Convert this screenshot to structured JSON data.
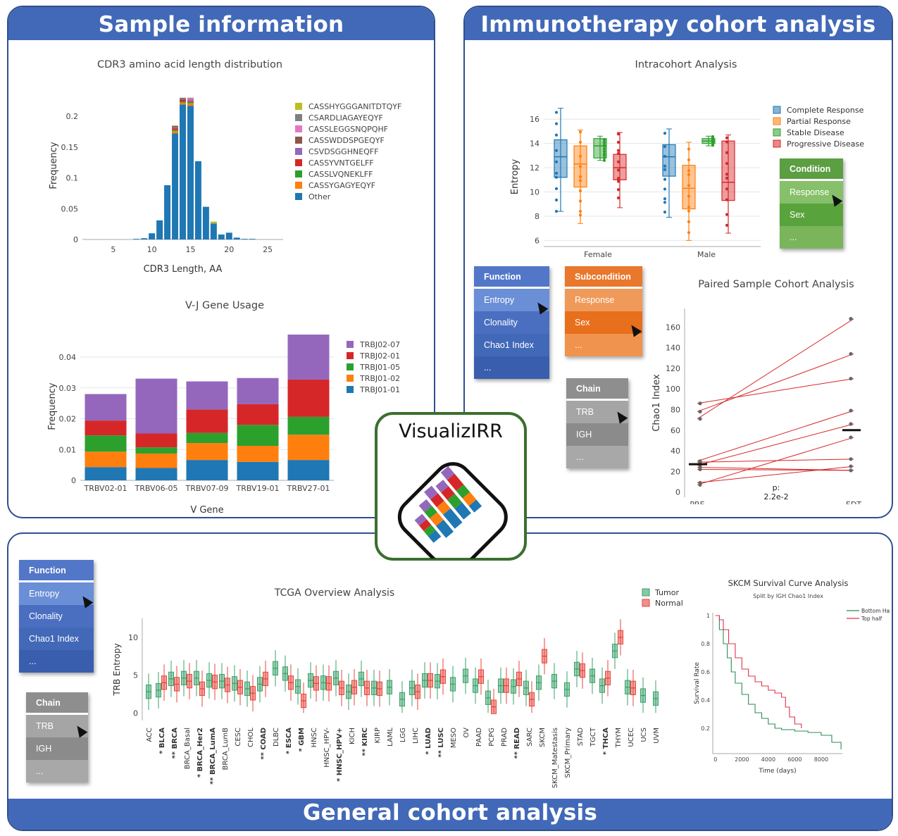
{
  "panels": {
    "sample": {
      "title": "Sample information"
    },
    "immuno": {
      "title": "Immunotherapy cohort analysis"
    },
    "general": {
      "title": "General cohort analysis"
    }
  },
  "logo": {
    "text": "VisualizIRR"
  },
  "colors": {
    "blue": "#1f77b4",
    "orange": "#ff7f0e",
    "green": "#2ca02c",
    "red": "#d62728",
    "purple": "#9467bd",
    "brown": "#8c564b",
    "pink": "#e377c2",
    "gray": "#7f7f7f",
    "olive": "#bcbd22"
  },
  "menus": {
    "function_top": {
      "header": "Function",
      "items": [
        "Entropy",
        "Clonality",
        "Chao1 Index",
        "..."
      ]
    },
    "subcondition": {
      "header": "Subcondition",
      "items": [
        "Response",
        "Sex",
        "..."
      ]
    },
    "chain_top": {
      "header": "Chain",
      "items": [
        "TRB",
        "IGH",
        "..."
      ]
    },
    "condition": {
      "header": "Condition",
      "items": [
        "Response",
        "Sex",
        "..."
      ]
    },
    "function_bottom": {
      "header": "Function",
      "items": [
        "Entropy",
        "Clonality",
        "Chao1 Index",
        "..."
      ]
    },
    "chain_bottom": {
      "header": "Chain",
      "items": [
        "TRB",
        "IGH",
        "..."
      ]
    }
  },
  "chart_data": [
    {
      "id": "cdr3",
      "type": "bar",
      "title": "CDR3 amino acid length distribution",
      "xlabel": "CDR3 Length, AA",
      "ylabel": "Frequency",
      "xlim": [
        1,
        27
      ],
      "ylim": [
        0,
        0.24
      ],
      "xticks": [
        5,
        10,
        15,
        20,
        25
      ],
      "yticks": [
        0,
        0.05,
        0.1,
        0.15,
        0.2
      ],
      "ytick_labels": [
        "0",
        "0.05",
        "0.1",
        "0.15",
        "0.2"
      ],
      "x": [
        8,
        9,
        10,
        11,
        12,
        13,
        14,
        15,
        16,
        17,
        18,
        19,
        20,
        21,
        22,
        23
      ],
      "series": [
        {
          "name": "Other",
          "color": "#1f77b4",
          "values": [
            0.001,
            0.002,
            0.01,
            0.031,
            0.088,
            0.172,
            0.219,
            0.217,
            0.127,
            0.053,
            0.026,
            0.008,
            0.011,
            0.003,
            0.001,
            0.001
          ]
        },
        {
          "name": "CASSYGAGYEQYF",
          "color": "#ff7f0e",
          "values": [
            0,
            0,
            0,
            0,
            0,
            0.004,
            0.003,
            0.004,
            0,
            0,
            0,
            0,
            0,
            0,
            0,
            0
          ]
        },
        {
          "name": "CASSLVQNEKLFF",
          "color": "#2ca02c",
          "values": [
            0,
            0,
            0,
            0,
            0,
            0.002,
            0.002,
            0.002,
            0,
            0,
            0,
            0,
            0,
            0,
            0,
            0
          ]
        },
        {
          "name": "CASSYVNTGELFF",
          "color": "#d62728",
          "values": [
            0,
            0,
            0,
            0,
            0,
            0.002,
            0.003,
            0.001,
            0,
            0,
            0,
            0,
            0,
            0,
            0,
            0
          ]
        },
        {
          "name": "CSVDSGGHNEQFF",
          "color": "#9467bd",
          "values": [
            0,
            0,
            0,
            0,
            0,
            0.002,
            0.001,
            0.002,
            0,
            0,
            0,
            0,
            0,
            0,
            0,
            0
          ]
        },
        {
          "name": "CASSWDDSPGEQYF",
          "color": "#8c564b",
          "values": [
            0,
            0,
            0,
            0,
            0,
            0.002,
            0.001,
            0.001,
            0,
            0,
            0,
            0,
            0,
            0,
            0,
            0
          ]
        },
        {
          "name": "CASSLEGGSNQPQHF",
          "color": "#e377c2",
          "values": [
            0,
            0,
            0,
            0,
            0,
            0,
            0,
            0.002,
            0,
            0,
            0,
            0,
            0,
            0,
            0,
            0
          ]
        },
        {
          "name": "CSARDLIAGAYEQYF",
          "color": "#7f7f7f",
          "values": [
            0,
            0,
            0,
            0,
            0,
            0,
            0.001,
            0.001,
            0,
            0,
            0,
            0,
            0,
            0,
            0,
            0
          ]
        },
        {
          "name": "CASSHYGGGANITDTQYF",
          "color": "#bcbd22",
          "values": [
            0,
            0,
            0,
            0,
            0,
            0.001,
            0,
            0,
            0,
            0,
            0.003,
            0,
            0,
            0,
            0,
            0
          ]
        }
      ]
    },
    {
      "id": "vj",
      "type": "bar",
      "title": "V-J Gene Usage",
      "xlabel": "V Gene",
      "ylabel": "Frequency",
      "ylim": [
        0,
        0.048
      ],
      "yticks": [
        0,
        0.01,
        0.02,
        0.03,
        0.04
      ],
      "ytick_labels": [
        "0",
        "0.01",
        "0.02",
        "0.03",
        "0.04"
      ],
      "categories": [
        "TRBV02-01",
        "TRBV06-05",
        "TRBV07-09",
        "TRBV19-01",
        "TRBV27-01"
      ],
      "series": [
        {
          "name": "TRBJ01-01",
          "color": "#1f77b4",
          "values": [
            0.0043,
            0.004,
            0.0066,
            0.006,
            0.0066
          ]
        },
        {
          "name": "TRBJ01-02",
          "color": "#ff7f0e",
          "values": [
            0.005,
            0.0047,
            0.0055,
            0.0052,
            0.0082
          ]
        },
        {
          "name": "TRBJ01-05",
          "color": "#2ca02c",
          "values": [
            0.0053,
            0.002,
            0.0033,
            0.0068,
            0.0058
          ]
        },
        {
          "name": "TRBJ02-01",
          "color": "#d62728",
          "values": [
            0.0048,
            0.0045,
            0.0076,
            0.0067,
            0.0121
          ]
        },
        {
          "name": "TRBJ02-07",
          "color": "#9467bd",
          "values": [
            0.0086,
            0.0178,
            0.0091,
            0.0085,
            0.0146
          ]
        }
      ]
    },
    {
      "id": "intracohort",
      "type": "box",
      "title": "Intracohort Analysis",
      "ylabel": "Entropy",
      "ylim": [
        5.5,
        17
      ],
      "yticks": [
        6,
        8,
        10,
        12,
        14,
        16
      ],
      "categories": [
        "Female",
        "Male"
      ],
      "series": [
        {
          "name": "Complete Response",
          "color": "#1f77b4",
          "boxes": [
            [
              8.4,
              11.2,
              12.9,
              14.3,
              16.9
            ],
            [
              7.9,
              11.3,
              12.9,
              13.9,
              15.2
            ]
          ]
        },
        {
          "name": "Partial Response",
          "color": "#ff7f0e",
          "boxes": [
            [
              7.4,
              10.4,
              12.3,
              13.8,
              15.1
            ],
            [
              6.0,
              8.6,
              10.3,
              12.2,
              14.1
            ]
          ]
        },
        {
          "name": "Stable Disease",
          "color": "#2ca02c",
          "boxes": [
            [
              12.6,
              12.8,
              13.8,
              14.4,
              14.6
            ],
            [
              13.8,
              14.0,
              14.2,
              14.4,
              14.6
            ]
          ]
        },
        {
          "name": "Progressive Disease",
          "color": "#d62728",
          "boxes": [
            [
              8.7,
              11.0,
              12.0,
              13.1,
              14.9
            ],
            [
              6.6,
              9.3,
              10.8,
              14.2,
              14.7
            ]
          ]
        }
      ]
    },
    {
      "id": "paired",
      "type": "line",
      "title": "Paired Sample Cohort Analysis",
      "ylabel": "Chao1 Index",
      "ylim": [
        -5,
        178
      ],
      "yticks": [
        0,
        20,
        40,
        60,
        80,
        100,
        120,
        140,
        160
      ],
      "categories": [
        "PRE",
        "EDT"
      ],
      "annotation": "p:\n2.2e-2",
      "median": [
        27,
        60
      ],
      "pairs": [
        [
          86,
          110
        ],
        [
          78,
          134
        ],
        [
          71,
          168
        ],
        [
          30,
          79
        ],
        [
          29,
          32
        ],
        [
          26,
          66
        ],
        [
          24,
          21
        ],
        [
          9,
          25
        ],
        [
          7,
          53
        ],
        [
          22,
          21
        ]
      ]
    },
    {
      "id": "tcga",
      "type": "box",
      "title": "TCGA Overview Analysis",
      "ylabel": "TRB Entropy",
      "ylim": [
        -1,
        12.5
      ],
      "yticks": [
        0,
        5,
        10
      ],
      "series_names": [
        "Tumor",
        "Normal"
      ],
      "categories": [
        {
          "label": "ACC",
          "sig": "",
          "t": 2.8
        },
        {
          "label": "BLCA",
          "sig": "*",
          "t": 3.0,
          "n": 4.0
        },
        {
          "label": "BRCA",
          "sig": "**",
          "t": 4.5,
          "n": 3.8
        },
        {
          "label": "BRCA_Basal",
          "sig": "",
          "t": 4.6,
          "n": 4.2
        },
        {
          "label": "BRCA_Her2",
          "sig": "*",
          "t": 4.6,
          "n": 3.2
        },
        {
          "label": "BRCA_LumA",
          "sig": "**",
          "t": 4.3,
          "n": 4.1
        },
        {
          "label": "BRCA_LumB",
          "sig": "",
          "t": 4.2,
          "n": 3.7
        },
        {
          "label": "CESC",
          "sig": "",
          "t": 3.9,
          "n": 3.4
        },
        {
          "label": "CHOL",
          "sig": "",
          "t": 3.2,
          "n": 2.6
        },
        {
          "label": "COAD",
          "sig": "**",
          "t": 3.8,
          "n": 4.5
        },
        {
          "label": "DLBC",
          "sig": "",
          "t": 5.9
        },
        {
          "label": "ESCA",
          "sig": "*",
          "t": 5.2,
          "n": 4.0
        },
        {
          "label": "GBM",
          "sig": "*",
          "t": 3.5,
          "n": 1.6
        },
        {
          "label": "HNSC",
          "sig": "",
          "t": 4.3,
          "n": 3.9
        },
        {
          "label": "HNSC_HPV-",
          "sig": "",
          "t": 4.0,
          "n": 3.9
        },
        {
          "label": "HNSC_HPV+",
          "sig": "*",
          "t": 4.6,
          "n": 3.3
        },
        {
          "label": "KICH",
          "sig": "",
          "t": 2.8,
          "n": 3.4
        },
        {
          "label": "KIRC",
          "sig": "**",
          "t": 4.5,
          "n": 3.3
        },
        {
          "label": "KIRP",
          "sig": "",
          "t": 3.3,
          "n": 3.2
        },
        {
          "label": "LAML",
          "sig": "",
          "t": 3.4
        },
        {
          "label": "LGG",
          "sig": "",
          "t": 1.8
        },
        {
          "label": "LIHC",
          "sig": "",
          "t": 3.3,
          "n": 2.8
        },
        {
          "label": "LUAD",
          "sig": "*",
          "t": 4.3,
          "n": 4.3
        },
        {
          "label": "LUSC",
          "sig": "**",
          "t": 4.2,
          "n": 4.8
        },
        {
          "label": "MESO",
          "sig": "",
          "t": 3.8
        },
        {
          "label": "OV",
          "sig": "",
          "t": 4.9
        },
        {
          "label": "PAAD",
          "sig": "",
          "t": 3.6,
          "n": 4.8
        },
        {
          "label": "PCPG",
          "sig": "",
          "t": 2.0,
          "n": 0.8
        },
        {
          "label": "PRAD",
          "sig": "",
          "t": 3.6,
          "n": 3.6
        },
        {
          "label": "READ",
          "sig": "**",
          "t": 3.5,
          "n": 4.5
        },
        {
          "label": "SARC",
          "sig": "",
          "t": 3.3,
          "n": 1.8
        },
        {
          "label": "SKCM",
          "sig": "",
          "t": 4.0,
          "n": 7.5
        },
        {
          "label": "SKCM_Matestasis",
          "sig": "",
          "t": 4.2
        },
        {
          "label": "SKCM_Primary",
          "sig": "",
          "t": 3.1
        },
        {
          "label": "STAD",
          "sig": "",
          "t": 5.8,
          "n": 5.6
        },
        {
          "label": "TGCT",
          "sig": "",
          "t": 4.9
        },
        {
          "label": "THCA",
          "sig": "*",
          "t": 3.6,
          "n": 4.6
        },
        {
          "label": "THYM",
          "sig": "",
          "t": 8.2,
          "n": 10.0
        },
        {
          "label": "UCEC",
          "sig": "",
          "t": 3.4,
          "n": 3.3
        },
        {
          "label": "UCS",
          "sig": "",
          "t": 2.3
        },
        {
          "label": "UVM",
          "sig": "",
          "t": 1.9
        }
      ]
    },
    {
      "id": "survival",
      "type": "line",
      "title": "SKCM Survival Curve Analysis",
      "subtitle": "Split by IGH Chao1 Index",
      "xlabel": "Time (days)",
      "ylabel": "Survival Rate",
      "xlim": [
        -200,
        9600
      ],
      "ylim": [
        0.02,
        1.02
      ],
      "xticks": [
        0,
        2000,
        4000,
        6000,
        8000
      ],
      "yticks": [
        0.2,
        0.4,
        0.6,
        0.8,
        1
      ],
      "ytick_labels": [
        "0.2",
        "0.4",
        "0.6",
        "0.8",
        "1"
      ],
      "series": [
        {
          "name": "Bottom Half",
          "color": "#2e8b57",
          "x": [
            0,
            300,
            600,
            900,
            1200,
            1500,
            2000,
            2500,
            3000,
            3500,
            4000,
            4500,
            5000,
            6000,
            7000,
            8000,
            8800,
            9500
          ],
          "y": [
            1.0,
            0.9,
            0.8,
            0.7,
            0.6,
            0.52,
            0.44,
            0.37,
            0.31,
            0.27,
            0.23,
            0.2,
            0.19,
            0.18,
            0.17,
            0.15,
            0.1,
            0.05
          ]
        },
        {
          "name": "Top half",
          "color": "#e0304a",
          "x": [
            0,
            300,
            600,
            1000,
            1500,
            2000,
            2500,
            3000,
            3500,
            4000,
            4500,
            5000,
            5300,
            5600,
            6000,
            6500
          ],
          "y": [
            1.0,
            0.97,
            0.9,
            0.8,
            0.7,
            0.62,
            0.57,
            0.53,
            0.5,
            0.47,
            0.45,
            0.42,
            0.35,
            0.28,
            0.23,
            0.2
          ]
        }
      ]
    }
  ]
}
